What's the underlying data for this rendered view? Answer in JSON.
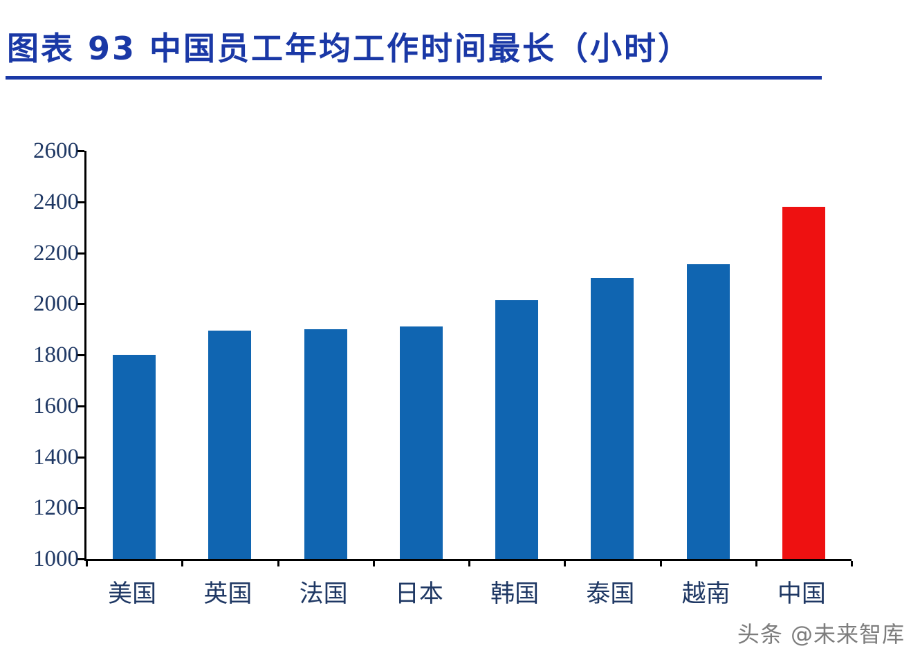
{
  "header": {
    "title": "图表 93   中国员工年均工作时间最长（小时）",
    "accent_color": "#1a38a6"
  },
  "chart_data": {
    "type": "bar",
    "title": "中国员工年均工作时间最长（小时）",
    "categories": [
      "美国",
      "英国",
      "法国",
      "日本",
      "韩国",
      "泰国",
      "越南",
      "中国"
    ],
    "values": [
      1800,
      1895,
      1900,
      1910,
      2015,
      2100,
      2155,
      2380
    ],
    "bar_colors": [
      "#1065b1",
      "#1065b1",
      "#1065b1",
      "#1065b1",
      "#1065b1",
      "#1065b1",
      "#1065b1",
      "#ee1111"
    ],
    "highlight_category": "中国",
    "highlight_color": "#ee1111",
    "base_color": "#1065b1",
    "ylim": [
      1000,
      2600
    ],
    "y_ticks": [
      "2600",
      "2400",
      "2200",
      "2000",
      "1800",
      "1600",
      "1400",
      "1200",
      "1000"
    ],
    "xlabel": "",
    "ylabel": "",
    "grid": false,
    "legend_position": "none"
  },
  "footer": {
    "watermark": "头条 @未来智库"
  }
}
